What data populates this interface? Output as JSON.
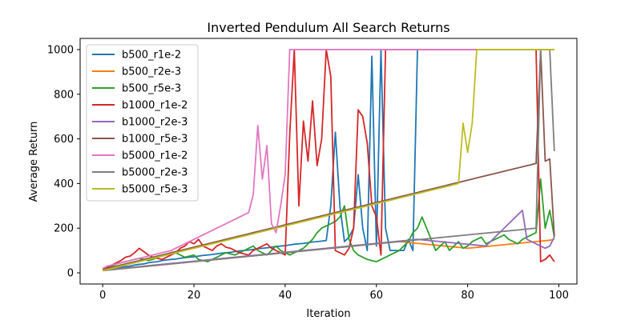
{
  "chart_data": {
    "type": "line",
    "title": "Inverted Pendulum All Search Returns",
    "xlabel": "Iteration",
    "ylabel": "Average Return",
    "xlim": [
      -4.95,
      103.95
    ],
    "ylim": [
      -50,
      1050
    ],
    "xticks": [
      0,
      20,
      40,
      60,
      80,
      100
    ],
    "yticks": [
      0,
      200,
      400,
      600,
      800,
      1000
    ],
    "grid": false,
    "legend_position": "top-left",
    "series": [
      {
        "name": "b500_r1e-2",
        "color": "#1f77b4",
        "values": [
          12,
          15,
          18,
          22,
          25,
          28,
          30,
          35,
          38,
          40,
          45,
          48,
          50,
          55,
          58,
          60,
          62,
          65,
          68,
          70,
          72,
          75,
          78,
          80,
          82,
          85,
          88,
          90,
          92,
          95,
          98,
          100,
          102,
          105,
          108,
          110,
          112,
          115,
          118,
          120,
          122,
          125,
          128,
          130,
          132,
          135,
          138,
          140,
          142,
          145,
          300,
          630,
          300,
          140,
          160,
          200,
          440,
          200,
          100,
          970,
          120,
          1000,
          200,
          100,
          100,
          100,
          100,
          150,
          100,
          1000,
          1000,
          1000,
          1000,
          1000,
          1000,
          1000,
          1000,
          1000,
          1000,
          1000,
          1000,
          1000,
          1000,
          1000,
          1000,
          1000,
          1000,
          1000,
          1000,
          1000,
          1000,
          1000,
          1000,
          1000,
          1000,
          1000,
          1000,
          1000,
          1000,
          1000
        ]
      },
      {
        "name": "b500_r2e-3",
        "color": "#ff7f0e",
        "values": [
          10,
          12,
          14,
          16,
          18,
          20,
          22,
          24,
          26,
          28,
          30,
          32,
          34,
          36,
          38,
          40,
          42,
          44,
          46,
          48,
          50,
          52,
          54,
          56,
          58,
          60,
          62,
          64,
          66,
          68,
          70,
          72,
          74,
          76,
          78,
          80,
          82,
          84,
          86,
          88,
          90,
          92,
          94,
          96,
          98,
          100,
          102,
          104,
          106,
          108,
          110,
          112,
          114,
          116,
          118,
          120,
          122,
          124,
          126,
          128,
          130,
          132,
          134,
          136,
          138,
          140,
          138,
          136,
          134,
          132,
          130,
          128,
          126,
          124,
          122,
          120,
          118,
          116,
          114,
          112,
          110,
          112,
          114,
          116,
          118,
          120,
          122,
          124,
          126,
          128,
          130,
          132,
          134,
          136,
          138,
          140,
          142,
          144,
          146,
          150
        ]
      },
      {
        "name": "b500_r5e-3",
        "color": "#2ca02c",
        "values": [
          14,
          20,
          30,
          40,
          45,
          50,
          55,
          60,
          65,
          60,
          55,
          60,
          70,
          75,
          80,
          85,
          90,
          80,
          70,
          75,
          80,
          60,
          55,
          50,
          60,
          70,
          80,
          90,
          85,
          80,
          90,
          100,
          110,
          120,
          100,
          90,
          80,
          100,
          120,
          100,
          90,
          80,
          90,
          100,
          110,
          130,
          150,
          180,
          200,
          210,
          220,
          230,
          250,
          300,
          150,
          100,
          80,
          70,
          60,
          55,
          50,
          60,
          70,
          80,
          90,
          100,
          120,
          140,
          180,
          200,
          250,
          200,
          150,
          100,
          120,
          140,
          100,
          120,
          140,
          110,
          120,
          140,
          150,
          160,
          130,
          140,
          150,
          160,
          170,
          150,
          140,
          130,
          150,
          160,
          170,
          180,
          420,
          200,
          280,
          160
        ]
      },
      {
        "name": "b1000_r1e-2",
        "color": "#d62728",
        "values": [
          15,
          25,
          35,
          45,
          55,
          70,
          75,
          90,
          110,
          95,
          80,
          70,
          65,
          60,
          70,
          80,
          90,
          110,
          120,
          140,
          130,
          150,
          120,
          110,
          100,
          120,
          130,
          115,
          110,
          100,
          90,
          85,
          80,
          100,
          110,
          120,
          130,
          110,
          100,
          90,
          80,
          620,
          1000,
          300,
          680,
          500,
          770,
          480,
          600,
          1000,
          880,
          100,
          90,
          80,
          110,
          200,
          730,
          700,
          580,
          300,
          250,
          80,
          1000,
          1000,
          1000,
          1000,
          1000,
          1000,
          1000,
          1000,
          1000,
          1000,
          1000,
          1000,
          1000,
          1000,
          1000,
          1000,
          1000,
          1000,
          1000,
          1000,
          1000,
          1000,
          1000,
          1000,
          1000,
          1000,
          1000,
          1000,
          1000,
          1000,
          1000,
          1000,
          1000,
          1000,
          50,
          60,
          80,
          50
        ]
      },
      {
        "name": "b1000_r2e-3",
        "color": "#9467bd",
        "values": [
          12,
          14,
          16,
          18,
          20,
          22,
          24,
          26,
          28,
          30,
          32,
          34,
          36,
          38,
          40,
          42,
          44,
          46,
          48,
          50,
          52,
          54,
          56,
          58,
          60,
          62,
          64,
          66,
          68,
          70,
          72,
          74,
          76,
          78,
          80,
          82,
          84,
          86,
          88,
          90,
          92,
          94,
          96,
          98,
          100,
          102,
          104,
          106,
          108,
          110,
          112,
          114,
          116,
          118,
          120,
          122,
          124,
          126,
          128,
          130,
          132,
          134,
          136,
          138,
          140,
          142,
          144,
          146,
          148,
          150,
          148,
          146,
          144,
          142,
          140,
          138,
          136,
          134,
          132,
          130,
          128,
          126,
          124,
          122,
          120,
          140,
          160,
          180,
          200,
          220,
          240,
          260,
          280,
          150,
          140,
          130,
          120,
          110,
          120,
          160
        ]
      },
      {
        "name": "b1000_r5e-3",
        "color": "#8c564b",
        "values": [
          15,
          20,
          25,
          30,
          35,
          40,
          45,
          50,
          55,
          60,
          65,
          70,
          75,
          80,
          85,
          90,
          95,
          100,
          105,
          110,
          115,
          120,
          125,
          130,
          135,
          140,
          145,
          150,
          155,
          160,
          165,
          170,
          175,
          180,
          185,
          190,
          195,
          200,
          205,
          210,
          215,
          220,
          225,
          230,
          235,
          240,
          245,
          250,
          255,
          260,
          265,
          270,
          275,
          280,
          285,
          290,
          295,
          300,
          305,
          310,
          315,
          320,
          325,
          330,
          335,
          340,
          345,
          350,
          355,
          360,
          365,
          370,
          375,
          380,
          385,
          390,
          395,
          400,
          405,
          410,
          415,
          420,
          425,
          430,
          435,
          440,
          445,
          450,
          455,
          460,
          465,
          470,
          475,
          480,
          485,
          490,
          1000,
          500,
          510,
          165
        ]
      },
      {
        "name": "b5000_r1e-2",
        "color": "#e377c2",
        "values": [
          20,
          30,
          35,
          40,
          45,
          50,
          55,
          60,
          65,
          70,
          75,
          80,
          85,
          90,
          95,
          100,
          110,
          120,
          130,
          140,
          150,
          160,
          170,
          180,
          190,
          200,
          210,
          220,
          230,
          240,
          250,
          260,
          270,
          350,
          660,
          420,
          570,
          220,
          180,
          300,
          440,
          1000,
          1000,
          1000,
          1000,
          1000,
          1000,
          1000,
          1000,
          1000,
          1000,
          1000,
          1000,
          1000,
          1000,
          1000,
          1000,
          1000,
          1000,
          1000,
          1000,
          1000,
          1000,
          1000,
          1000,
          1000,
          1000,
          1000,
          1000,
          1000,
          1000,
          1000,
          1000,
          1000,
          1000,
          1000,
          1000,
          1000,
          1000,
          1000,
          1000,
          1000,
          1000,
          1000,
          1000,
          1000,
          1000,
          1000,
          1000,
          1000,
          1000,
          1000,
          1000,
          1000,
          1000,
          1000,
          1000,
          1000,
          1000,
          1000
        ]
      },
      {
        "name": "b5000_r2e-3",
        "color": "#7f7f7f",
        "values": [
          10,
          12,
          14,
          16,
          18,
          20,
          22,
          24,
          26,
          28,
          30,
          32,
          34,
          36,
          38,
          40,
          42,
          44,
          46,
          48,
          50,
          52,
          54,
          56,
          58,
          60,
          62,
          64,
          66,
          68,
          70,
          72,
          74,
          76,
          78,
          80,
          82,
          84,
          86,
          88,
          90,
          92,
          94,
          96,
          98,
          100,
          102,
          104,
          106,
          108,
          110,
          112,
          114,
          116,
          118,
          120,
          122,
          124,
          126,
          128,
          130,
          132,
          134,
          136,
          138,
          140,
          142,
          144,
          146,
          148,
          150,
          152,
          154,
          156,
          158,
          160,
          162,
          164,
          166,
          168,
          170,
          172,
          174,
          176,
          178,
          180,
          182,
          184,
          186,
          188,
          190,
          192,
          194,
          196,
          198,
          200,
          1000,
          1000,
          1000,
          545
        ]
      },
      {
        "name": "b5000_r5e-3",
        "color": "#bcbd22",
        "values": [
          10,
          15,
          20,
          25,
          30,
          35,
          40,
          45,
          50,
          55,
          60,
          65,
          70,
          75,
          80,
          85,
          90,
          95,
          100,
          105,
          110,
          115,
          120,
          125,
          130,
          135,
          140,
          145,
          150,
          155,
          160,
          165,
          170,
          175,
          180,
          185,
          190,
          195,
          200,
          205,
          210,
          215,
          220,
          225,
          230,
          235,
          240,
          245,
          250,
          255,
          260,
          265,
          270,
          275,
          280,
          285,
          290,
          295,
          300,
          305,
          310,
          315,
          320,
          325,
          330,
          335,
          340,
          345,
          350,
          355,
          360,
          365,
          370,
          375,
          380,
          385,
          390,
          395,
          400,
          670,
          540,
          670,
          1000,
          1000,
          1000,
          1000,
          1000,
          1000,
          1000,
          1000,
          1000,
          1000,
          1000,
          1000,
          1000,
          1000,
          1000,
          1000,
          1000,
          1000
        ]
      }
    ]
  }
}
